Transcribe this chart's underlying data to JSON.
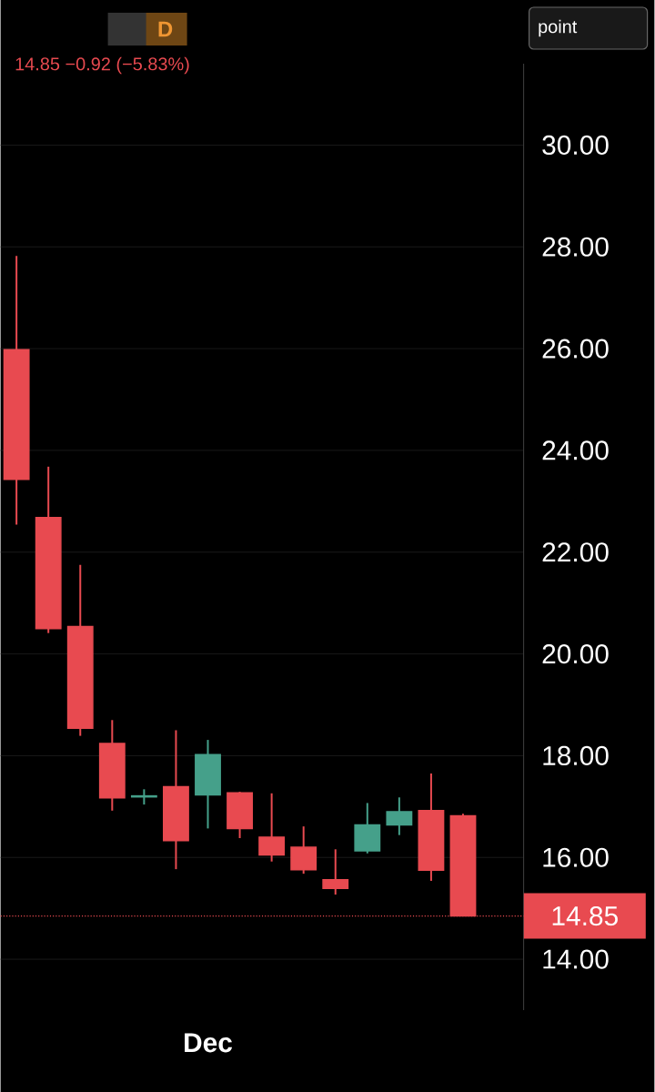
{
  "chart_data": {
    "type": "candlestick",
    "categories": [
      null,
      null,
      null,
      null,
      null,
      null,
      "Dec",
      null,
      null,
      null,
      null,
      null,
      null,
      null,
      null
    ],
    "ohlc": [
      [
        25.98,
        27.82,
        22.54,
        23.43
      ],
      [
        22.68,
        23.68,
        20.41,
        20.5
      ],
      [
        20.54,
        21.75,
        18.39,
        18.54
      ],
      [
        18.24,
        18.7,
        16.92,
        17.17
      ],
      [
        17.19,
        17.34,
        17.04,
        17.21
      ],
      [
        17.39,
        18.5,
        15.77,
        16.33
      ],
      [
        17.23,
        18.31,
        16.57,
        18.02
      ],
      [
        17.27,
        17.29,
        16.38,
        16.57
      ],
      [
        16.4,
        17.26,
        15.92,
        16.05
      ],
      [
        16.2,
        16.61,
        15.68,
        15.76
      ],
      [
        15.56,
        16.16,
        15.27,
        15.39
      ],
      [
        16.13,
        17.07,
        16.08,
        16.64
      ],
      [
        16.64,
        17.18,
        16.44,
        16.9
      ],
      [
        16.92,
        17.65,
        15.54,
        15.75
      ],
      [
        16.82,
        16.86,
        14.85,
        14.85
      ]
    ],
    "colors": [
      "#e84a50",
      "#e84a50",
      "#e84a50",
      "#e84a50",
      "#45a08a",
      "#e84a50",
      "#45a08a",
      "#e84a50",
      "#e84a50",
      "#e84a50",
      "#e84a50",
      "#45a08a",
      "#45a08a",
      "#e84a50",
      "#e84a50"
    ],
    "ylim": [
      13.0,
      31.6
    ],
    "yticks": [
      {
        "value": 14,
        "label": "14.00"
      },
      {
        "value": 16,
        "label": "16.00"
      },
      {
        "value": 18,
        "label": "18.00"
      },
      {
        "value": 20,
        "label": "20.00"
      },
      {
        "value": 22,
        "label": "22.00"
      },
      {
        "value": 24,
        "label": "24.00"
      },
      {
        "value": 26,
        "label": "26.00"
      },
      {
        "value": 28,
        "label": "28.00"
      },
      {
        "value": 30,
        "label": "30.00"
      }
    ],
    "grid": "y",
    "ref_lines": [
      {
        "axis": "y",
        "value": 14.85,
        "label": "14.85",
        "color": "#e84a50",
        "line_style": "dotted"
      }
    ],
    "annotations": [
      "14.85  −0.92 (−5.83%)",
      "D",
      "point"
    ]
  }
}
